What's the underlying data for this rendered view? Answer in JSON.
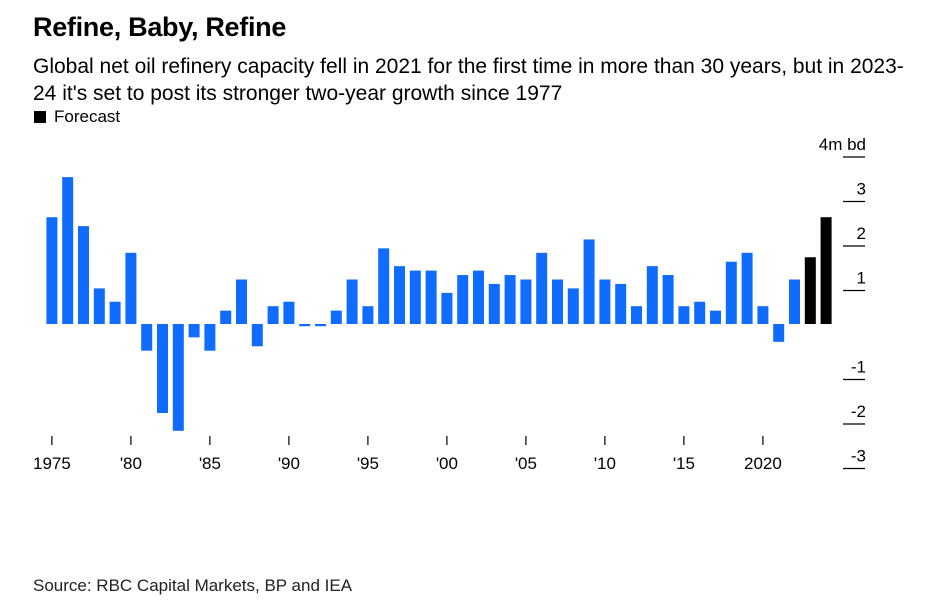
{
  "title": "Refine, Baby, Refine",
  "subtitle": "Global net oil refinery capacity fell in 2021 for the first time in more than 30 years, but in 2023-24 it's set to post its stronger two-year growth since 1977",
  "legend": {
    "forecast_label": "Forecast"
  },
  "source": "Source: RBC Capital Markets, BP and IEA",
  "colors": {
    "actual": "#0f6cff",
    "forecast": "#000000"
  },
  "chart_data": {
    "type": "bar",
    "unit_label": "4m bd",
    "ylim": [
      -3.5,
      4
    ],
    "y_ticks": [
      {
        "value": 4,
        "label": "4m bd"
      },
      {
        "value": 3,
        "label": "3"
      },
      {
        "value": 2,
        "label": "2"
      },
      {
        "value": 1,
        "label": "1"
      },
      {
        "value": -1,
        "label": "-1"
      },
      {
        "value": -2,
        "label": "-2"
      },
      {
        "value": -3,
        "label": "-3"
      }
    ],
    "x_ticks": [
      {
        "year": 1975,
        "label": "1975"
      },
      {
        "year": 1980,
        "label": "'80"
      },
      {
        "year": 1985,
        "label": "'85"
      },
      {
        "year": 1990,
        "label": "'90"
      },
      {
        "year": 1995,
        "label": "'95"
      },
      {
        "year": 2000,
        "label": "'00"
      },
      {
        "year": 2005,
        "label": "'05"
      },
      {
        "year": 2010,
        "label": "'10"
      },
      {
        "year": 2015,
        "label": "'15"
      },
      {
        "year": 2020,
        "label": "2020"
      }
    ],
    "years": [
      1975,
      1976,
      1977,
      1978,
      1979,
      1980,
      1981,
      1982,
      1983,
      1984,
      1985,
      1986,
      1987,
      1988,
      1989,
      1990,
      1991,
      1992,
      1993,
      1994,
      1995,
      1996,
      1997,
      1998,
      1999,
      2000,
      2001,
      2002,
      2003,
      2004,
      2005,
      2006,
      2007,
      2008,
      2009,
      2010,
      2011,
      2012,
      2013,
      2014,
      2015,
      2016,
      2017,
      2018,
      2019,
      2020,
      2021,
      2022,
      2023,
      2024
    ],
    "values": [
      2.4,
      3.3,
      2.2,
      0.8,
      0.5,
      1.6,
      -0.6,
      -2.0,
      -2.4,
      -0.3,
      -0.6,
      0.3,
      1.0,
      -0.5,
      0.4,
      0.5,
      -0.05,
      -0.05,
      0.3,
      1.0,
      0.4,
      1.7,
      1.3,
      1.2,
      1.2,
      0.7,
      1.1,
      1.2,
      0.9,
      1.1,
      1.0,
      1.6,
      1.0,
      0.8,
      1.9,
      1.0,
      0.9,
      0.4,
      1.3,
      1.1,
      0.4,
      0.5,
      0.3,
      1.4,
      1.6,
      0.4,
      -0.4,
      1.0,
      1.5,
      2.4
    ],
    "forecast_from_year": 2023
  }
}
